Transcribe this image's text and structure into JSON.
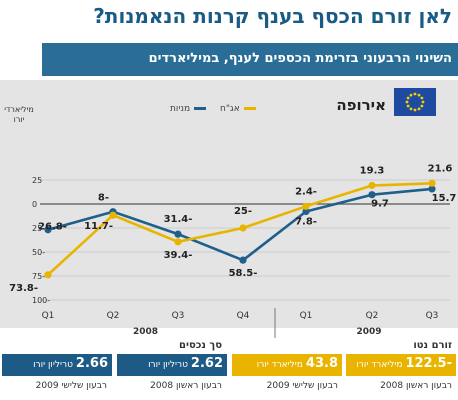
{
  "header": {
    "title": "לאן זורם הכסף בענף קרנות הנאמנות?",
    "subtitle": "השינוי הרבעוני בזרימת הכספים לענף, במיליארדים"
  },
  "legend": {
    "region": "אירופה",
    "stocks_label": "מניות",
    "bonds_label": "אג\"ח"
  },
  "colors": {
    "stocks": "#1f5f8b",
    "bonds": "#e8b400",
    "panel": "#e4e4e4",
    "box_blue": "#1e5a86",
    "box_yellow": "#e8b400"
  },
  "chart_data": {
    "type": "line",
    "ylabel": "מיליארדי יורו",
    "ylim": [
      -100,
      25
    ],
    "yticks": [
      25,
      0,
      -25,
      -50,
      -75,
      -100
    ],
    "categories": [
      "Q1",
      "Q2",
      "Q3",
      "Q4",
      "Q1",
      "Q2",
      "Q3"
    ],
    "year_groups": [
      {
        "label": "2008",
        "from": 0,
        "to": 3
      },
      {
        "label": "2009",
        "from": 4,
        "to": 6
      }
    ],
    "series": [
      {
        "name": "מניות",
        "color": "#1f5f8b",
        "values": [
          -26.8,
          -8,
          -31.4,
          -58.5,
          -7.8,
          9.7,
          15.7
        ]
      },
      {
        "name": "אג\"ח",
        "color": "#e8b400",
        "values": [
          -73.8,
          -11.7,
          -39.4,
          -25,
          -2.4,
          19.3,
          21.6
        ]
      }
    ],
    "grid": true
  },
  "summary": {
    "net_flow_header": "זורם נטו",
    "assets_header": "סך נכסים",
    "boxes": [
      {
        "value": "-122.5",
        "unit": "מיליארד יורו",
        "period": "רבעון ראשון 2008",
        "style": "yellow"
      },
      {
        "value": "43.8",
        "unit": "מיליארד יורו",
        "period": "רבעון שלישי 2009",
        "style": "yellow"
      },
      {
        "value": "2.62",
        "unit": "טריליון יורו",
        "period": "רבעון ראשון 2008",
        "style": "blue"
      },
      {
        "value": "2.66",
        "unit": "טריליון יורו",
        "period": "רבעון שלישי 2009",
        "style": "blue"
      }
    ]
  }
}
